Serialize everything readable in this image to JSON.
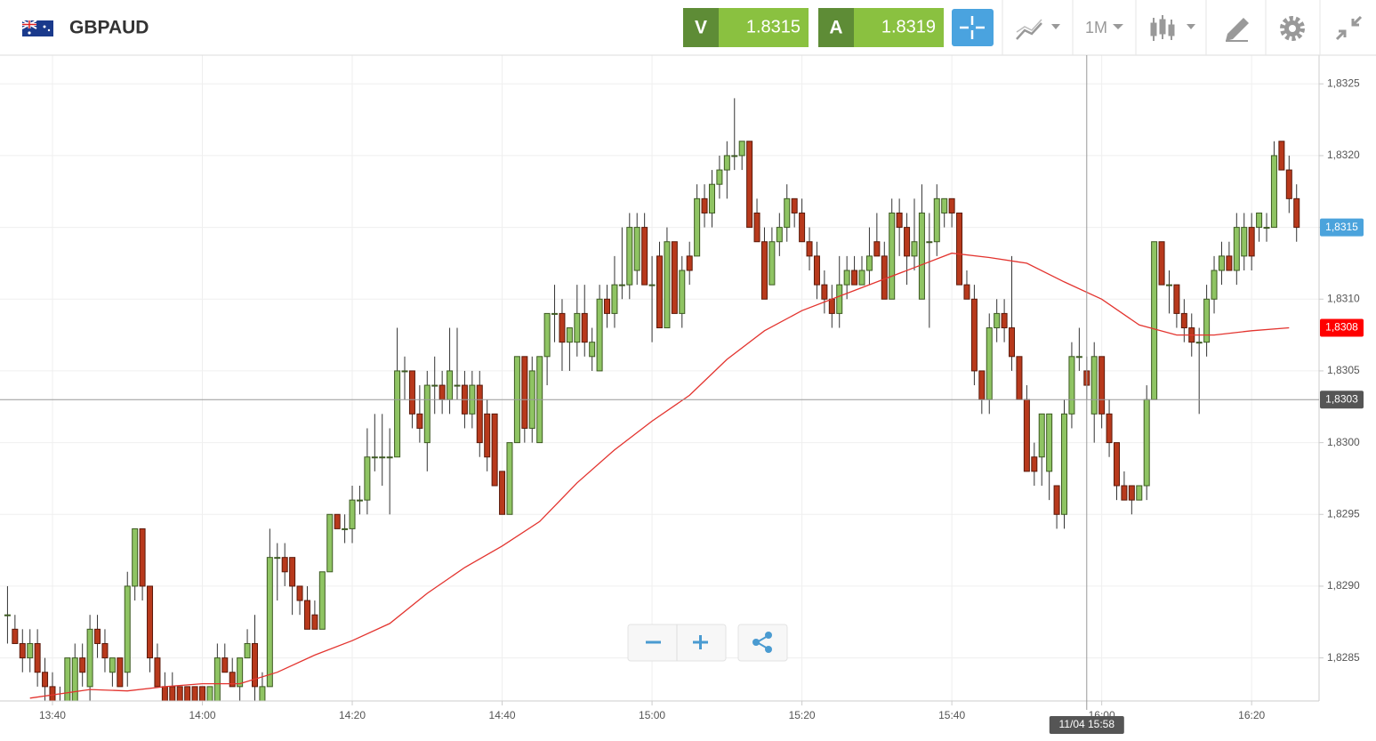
{
  "header": {
    "symbol": "GBPAUD",
    "sell_label": "V",
    "sell_price": "1.8315",
    "buy_label": "A",
    "buy_price": "1.8319",
    "interval": "1M"
  },
  "chart_data": {
    "type": "candlestick",
    "up_color": "#8fc463",
    "down_color": "#b8391c",
    "grid": true,
    "xlim": [
      "13:33",
      "16:29"
    ],
    "xticks": [
      "13:40",
      "14:00",
      "14:20",
      "14:40",
      "15:00",
      "15:20",
      "15:40",
      "16:00",
      "16:20"
    ],
    "ylim": [
      1.8282,
      1.8327
    ],
    "yticks": [
      {
        "value": 1.8285,
        "label": "1,8285"
      },
      {
        "value": 1.829,
        "label": "1,8290"
      },
      {
        "value": 1.8295,
        "label": "1,8295"
      },
      {
        "value": 1.83,
        "label": "1,8300"
      },
      {
        "value": 1.8305,
        "label": "1,8305"
      },
      {
        "value": 1.831,
        "label": "1,8310"
      },
      {
        "value": 1.8315,
        "label": "1,8315"
      },
      {
        "value": 1.832,
        "label": "1,8320"
      },
      {
        "value": 1.8325,
        "label": "1,8325"
      }
    ],
    "x": [
      "13:34",
      "13:35",
      "13:36",
      "13:37",
      "13:38",
      "13:39",
      "13:40",
      "13:41",
      "13:42",
      "13:43",
      "13:44",
      "13:45",
      "13:46",
      "13:47",
      "13:48",
      "13:49",
      "13:50",
      "13:51",
      "13:52",
      "13:53",
      "13:54",
      "13:55",
      "13:56",
      "13:57",
      "13:58",
      "13:59",
      "14:00",
      "14:01",
      "14:02",
      "14:03",
      "14:04",
      "14:05",
      "14:06",
      "14:07",
      "14:08",
      "14:09",
      "14:10",
      "14:11",
      "14:12",
      "14:13",
      "14:14",
      "14:15",
      "14:16",
      "14:17",
      "14:18",
      "14:19",
      "14:20",
      "14:21",
      "14:22",
      "14:23",
      "14:24",
      "14:25",
      "14:26",
      "14:27",
      "14:28",
      "14:29",
      "14:30",
      "14:31",
      "14:32",
      "14:33",
      "14:34",
      "14:35",
      "14:36",
      "14:37",
      "14:38",
      "14:39",
      "14:40",
      "14:41",
      "14:42",
      "14:43",
      "14:44",
      "14:45",
      "14:46",
      "14:47",
      "14:48",
      "14:49",
      "14:50",
      "14:51",
      "14:52",
      "14:53",
      "14:54",
      "14:55",
      "14:56",
      "14:57",
      "14:58",
      "14:59",
      "15:00",
      "15:01",
      "15:02",
      "15:03",
      "15:04",
      "15:05",
      "15:06",
      "15:07",
      "15:08",
      "15:09",
      "15:10",
      "15:11",
      "15:12",
      "15:13",
      "15:14",
      "15:15",
      "15:16",
      "15:17",
      "15:18",
      "15:19",
      "15:20",
      "15:21",
      "15:22",
      "15:23",
      "15:24",
      "15:25",
      "15:26",
      "15:27",
      "15:28",
      "15:29",
      "15:30",
      "15:31",
      "15:32",
      "15:33",
      "15:34",
      "15:35",
      "15:36",
      "15:37",
      "15:38",
      "15:39",
      "15:40",
      "15:41",
      "15:42",
      "15:43",
      "15:44",
      "15:45",
      "15:46",
      "15:47",
      "15:48",
      "15:49",
      "15:50",
      "15:51",
      "15:52",
      "15:53",
      "15:54",
      "15:55",
      "15:56",
      "15:57",
      "15:58",
      "15:59",
      "16:00",
      "16:01",
      "16:02",
      "16:03",
      "16:04",
      "16:05",
      "16:06",
      "16:07",
      "16:08",
      "16:09",
      "16:10",
      "16:11",
      "16:12",
      "16:13",
      "16:14",
      "16:15",
      "16:16",
      "16:17",
      "16:18",
      "16:19",
      "16:20",
      "16:21",
      "16:22",
      "16:23",
      "16:24",
      "16:25",
      "16:26"
    ],
    "open": [
      1.8288,
      1.8287,
      1.8286,
      1.8285,
      1.8286,
      1.8284,
      1.8283,
      1.8282,
      1.8282,
      1.8282,
      1.8285,
      1.8283,
      1.8287,
      1.8286,
      1.8284,
      1.8285,
      1.8284,
      1.829,
      1.8294,
      1.829,
      1.8285,
      1.8283,
      1.8283,
      1.8283,
      1.8283,
      1.8283,
      1.8283,
      1.8282,
      1.8282,
      1.8285,
      1.8284,
      1.8283,
      1.8285,
      1.8286,
      1.8282,
      1.8283,
      1.8292,
      1.8292,
      1.8292,
      1.829,
      1.8289,
      1.8288,
      1.8287,
      1.8291,
      1.8295,
      1.8294,
      1.8294,
      1.8296,
      1.8296,
      1.8299,
      1.8299,
      1.8299,
      1.8299,
      1.8305,
      1.8305,
      1.8302,
      1.83,
      1.8304,
      1.8304,
      1.8303,
      1.8304,
      1.8304,
      1.8302,
      1.8304,
      1.8302,
      1.8302,
      1.8298,
      1.8295,
      1.83,
      1.8306,
      1.8301,
      1.83,
      1.8306,
      1.8309,
      1.8309,
      1.8307,
      1.8307,
      1.8309,
      1.8306,
      1.8305,
      1.831,
      1.8309,
      1.8311,
      1.8311,
      1.8312,
      1.8315,
      1.8311,
      1.8313,
      1.8308,
      1.8314,
      1.8309,
      1.8313,
      1.8313,
      1.8317,
      1.8316,
      1.8318,
      1.8319,
      1.832,
      1.832,
      1.8321,
      1.8316,
      1.8314,
      1.8311,
      1.8314,
      1.8315,
      1.8317,
      1.8316,
      1.8314,
      1.8313,
      1.8311,
      1.831,
      1.8309,
      1.8311,
      1.8312,
      1.8311,
      1.8312,
      1.8314,
      1.8313,
      1.831,
      1.8316,
      1.8315,
      1.8313,
      1.831,
      1.8314,
      1.8314,
      1.8316,
      1.8317,
      1.8316,
      1.8311,
      1.831,
      1.8305,
      1.8303,
      1.8308,
      1.8309,
      1.8308,
      1.8306,
      1.8303,
      1.8299,
      1.8299,
      1.8298,
      1.8297,
      1.8295,
      1.8302,
      1.8306,
      1.8305,
      1.8302,
      1.8306,
      1.8302,
      1.83,
      1.8297,
      1.8297,
      1.8296,
      1.8297,
      1.8303,
      1.8314,
      1.8311,
      1.8311,
      1.8309,
      1.8308,
      1.8307,
      1.8307,
      1.831,
      1.8312,
      1.8313,
      1.8312,
      1.8313,
      1.8315,
      1.8315,
      1.8315,
      1.8315,
      1.8321,
      1.8319,
      1.8317
    ],
    "high": [
      1.829,
      1.8288,
      1.8287,
      1.8287,
      1.8287,
      1.8285,
      1.8284,
      1.8283,
      1.8285,
      1.8286,
      1.8286,
      1.8288,
      1.8288,
      1.8287,
      1.8285,
      1.8285,
      1.8291,
      1.8294,
      1.8294,
      1.829,
      1.8286,
      1.8284,
      1.8284,
      1.8283,
      1.8283,
      1.8283,
      1.8283,
      1.8283,
      1.8286,
      1.8286,
      1.8285,
      1.8285,
      1.8287,
      1.8288,
      1.8284,
      1.8294,
      1.8293,
      1.8293,
      1.8292,
      1.829,
      1.829,
      1.8289,
      1.8291,
      1.8295,
      1.8295,
      1.8295,
      1.8297,
      1.8297,
      1.8301,
      1.8302,
      1.8302,
      1.8301,
      1.8308,
      1.8306,
      1.8305,
      1.8304,
      1.8305,
      1.8306,
      1.8305,
      1.8308,
      1.8308,
      1.8305,
      1.8305,
      1.8305,
      1.8303,
      1.8302,
      1.8298,
      1.83,
      1.8306,
      1.8306,
      1.8306,
      1.8306,
      1.8309,
      1.8311,
      1.831,
      1.8308,
      1.8311,
      1.8311,
      1.8308,
      1.8311,
      1.8311,
      1.8313,
      1.8315,
      1.8316,
      1.8316,
      1.8316,
      1.8313,
      1.8314,
      1.8315,
      1.8314,
      1.8313,
      1.8314,
      1.8318,
      1.8318,
      1.8319,
      1.832,
      1.8321,
      1.8324,
      1.8321,
      1.8321,
      1.8317,
      1.8315,
      1.8315,
      1.8316,
      1.8318,
      1.8317,
      1.8317,
      1.8315,
      1.8314,
      1.8312,
      1.8311,
      1.8313,
      1.8313,
      1.8313,
      1.8313,
      1.8315,
      1.8316,
      1.8314,
      1.8317,
      1.8317,
      1.8316,
      1.8317,
      1.8318,
      1.8316,
      1.8318,
      1.8317,
      1.8317,
      1.8316,
      1.8312,
      1.8311,
      1.8305,
      1.8309,
      1.831,
      1.831,
      1.8313,
      1.8306,
      1.8304,
      1.83,
      1.8302,
      1.8302,
      1.8297,
      1.8303,
      1.8307,
      1.8308,
      1.8306,
      1.8307,
      1.8306,
      1.8303,
      1.83,
      1.8298,
      1.8297,
      1.8297,
      1.8304,
      1.8314,
      1.8314,
      1.8312,
      1.8311,
      1.831,
      1.8309,
      1.8308,
      1.8311,
      1.8313,
      1.8314,
      1.8314,
      1.8316,
      1.8316,
      1.8316,
      1.8316,
      1.8316,
      1.8321,
      1.8321,
      1.832,
      1.8318
    ],
    "low": [
      1.8286,
      1.8286,
      1.8284,
      1.8284,
      1.8283,
      1.8282,
      1.8282,
      1.8281,
      1.8281,
      1.8281,
      1.8283,
      1.8282,
      1.8285,
      1.8284,
      1.8283,
      1.8283,
      1.8283,
      1.8289,
      1.8289,
      1.8284,
      1.8283,
      1.8282,
      1.8282,
      1.8282,
      1.8282,
      1.8282,
      1.8282,
      1.8282,
      1.8282,
      1.8284,
      1.8283,
      1.8282,
      1.8285,
      1.8282,
      1.8282,
      1.8283,
      1.8289,
      1.829,
      1.8288,
      1.8288,
      1.8287,
      1.8287,
      1.8287,
      1.8291,
      1.8294,
      1.8293,
      1.8293,
      1.8295,
      1.8295,
      1.8298,
      1.8297,
      1.8295,
      1.8299,
      1.8303,
      1.8301,
      1.83,
      1.8298,
      1.8302,
      1.8302,
      1.8302,
      1.8303,
      1.8301,
      1.8301,
      1.8299,
      1.8298,
      1.8297,
      1.8295,
      1.8295,
      1.83,
      1.83,
      1.83,
      1.83,
      1.8304,
      1.8307,
      1.8305,
      1.8305,
      1.8306,
      1.8306,
      1.8305,
      1.8305,
      1.8308,
      1.8308,
      1.831,
      1.831,
      1.8311,
      1.8311,
      1.8307,
      1.8308,
      1.8308,
      1.8309,
      1.8308,
      1.8311,
      1.8313,
      1.8315,
      1.8315,
      1.8317,
      1.8317,
      1.8319,
      1.8319,
      1.8315,
      1.8314,
      1.831,
      1.8311,
      1.8313,
      1.8314,
      1.8315,
      1.8314,
      1.8312,
      1.831,
      1.8309,
      1.8308,
      1.8308,
      1.831,
      1.8311,
      1.8311,
      1.8311,
      1.8313,
      1.831,
      1.831,
      1.8313,
      1.8311,
      1.8312,
      1.831,
      1.8308,
      1.8313,
      1.8315,
      1.8315,
      1.8311,
      1.831,
      1.8304,
      1.8302,
      1.8302,
      1.8307,
      1.8307,
      1.8305,
      1.8303,
      1.8298,
      1.8297,
      1.8297,
      1.8296,
      1.8294,
      1.8294,
      1.8301,
      1.8305,
      1.8303,
      1.83,
      1.8301,
      1.8299,
      1.8296,
      1.8296,
      1.8295,
      1.8296,
      1.8296,
      1.8303,
      1.8311,
      1.8309,
      1.8308,
      1.8307,
      1.8306,
      1.8302,
      1.8306,
      1.8309,
      1.8311,
      1.8312,
      1.8311,
      1.8312,
      1.8312,
      1.8314,
      1.8314,
      1.8315,
      1.8319,
      1.8316,
      1.8314
    ],
    "close": [
      1.8288,
      1.8286,
      1.8285,
      1.8286,
      1.8284,
      1.8283,
      1.8282,
      1.8282,
      1.8285,
      1.8285,
      1.8284,
      1.8287,
      1.8286,
      1.8285,
      1.8285,
      1.8283,
      1.829,
      1.8294,
      1.829,
      1.8285,
      1.8283,
      1.8282,
      1.8282,
      1.8282,
      1.8282,
      1.8282,
      1.8282,
      1.8283,
      1.8285,
      1.8284,
      1.8283,
      1.8285,
      1.8286,
      1.8283,
      1.8283,
      1.8292,
      1.8292,
      1.8291,
      1.829,
      1.8289,
      1.8287,
      1.8287,
      1.8291,
      1.8295,
      1.8294,
      1.8294,
      1.8296,
      1.8296,
      1.8299,
      1.8299,
      1.8299,
      1.8299,
      1.8305,
      1.8305,
      1.8302,
      1.8301,
      1.8304,
      1.8304,
      1.8303,
      1.8305,
      1.8304,
      1.8302,
      1.8304,
      1.83,
      1.8299,
      1.8297,
      1.8295,
      1.83,
      1.8306,
      1.8301,
      1.8305,
      1.8306,
      1.8309,
      1.8309,
      1.8307,
      1.8308,
      1.8309,
      1.8307,
      1.8307,
      1.831,
      1.8309,
      1.8311,
      1.8311,
      1.8315,
      1.8315,
      1.8311,
      1.8311,
      1.8308,
      1.8314,
      1.8309,
      1.8312,
      1.8312,
      1.8317,
      1.8316,
      1.8318,
      1.8319,
      1.832,
      1.832,
      1.8321,
      1.8315,
      1.8314,
      1.831,
      1.8314,
      1.8315,
      1.8317,
      1.8316,
      1.8314,
      1.8313,
      1.8311,
      1.831,
      1.8309,
      1.8311,
      1.8312,
      1.8311,
      1.8312,
      1.8313,
      1.8313,
      1.831,
      1.8316,
      1.8315,
      1.8313,
      1.8314,
      1.8316,
      1.8314,
      1.8317,
      1.8317,
      1.8316,
      1.8311,
      1.831,
      1.8305,
      1.8303,
      1.8308,
      1.8309,
      1.8308,
      1.8306,
      1.8303,
      1.8298,
      1.8298,
      1.8302,
      1.8302,
      1.8295,
      1.8302,
      1.8306,
      1.8306,
      1.8304,
      1.8306,
      1.8302,
      1.83,
      1.8297,
      1.8296,
      1.8296,
      1.8297,
      1.8303,
      1.8314,
      1.8311,
      1.8311,
      1.8309,
      1.8308,
      1.8307,
      1.8307,
      1.831,
      1.8312,
      1.8313,
      1.8312,
      1.8315,
      1.8315,
      1.8313,
      1.8316,
      1.8315,
      1.832,
      1.8319,
      1.8317,
      1.8315
    ],
    "overlay": {
      "color": "#e3342f",
      "x": [
        "13:37",
        "13:45",
        "13:50",
        "13:55",
        "14:00",
        "14:05",
        "14:10",
        "14:15",
        "14:20",
        "14:25",
        "14:30",
        "14:35",
        "14:40",
        "14:45",
        "14:50",
        "14:55",
        "15:00",
        "15:05",
        "15:10",
        "15:15",
        "15:20",
        "15:25",
        "15:30",
        "15:35",
        "15:40",
        "15:45",
        "15:50",
        "15:55",
        "16:00",
        "16:05",
        "16:10",
        "16:15",
        "16:20",
        "16:25"
      ],
      "values": [
        1.82822,
        1.82828,
        1.82827,
        1.8283,
        1.82832,
        1.82832,
        1.8284,
        1.82852,
        1.82862,
        1.82874,
        1.82895,
        1.82913,
        1.82928,
        1.82945,
        1.82972,
        1.82995,
        1.83015,
        1.83033,
        1.83058,
        1.83078,
        1.83092,
        1.83102,
        1.83112,
        1.83122,
        1.83132,
        1.83129,
        1.83125,
        1.83112,
        1.831,
        1.83082,
        1.83075,
        1.83075,
        1.83078,
        1.8308
      ]
    },
    "price_labels": [
      {
        "value": 1.8315,
        "label": "1,8315",
        "color": "#4ba3dc"
      },
      {
        "value": 1.8308,
        "label": "1,8308",
        "color": "#ff0000"
      }
    ],
    "crosshair": {
      "x": {
        "value": "15:58",
        "label": "11/04 15:58"
      },
      "y": {
        "value": 1.8303,
        "label": "1,8303"
      },
      "color": "#555555"
    }
  }
}
